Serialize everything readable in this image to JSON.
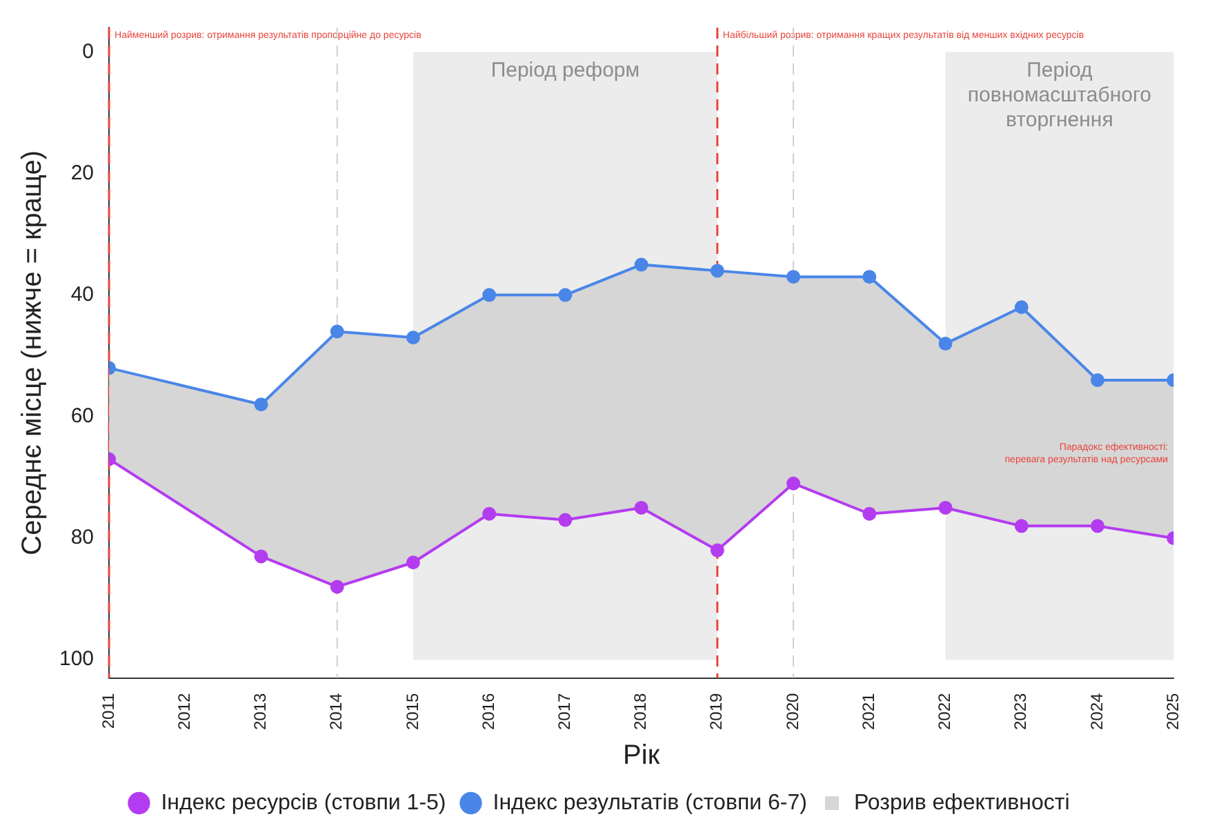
{
  "chart_data": {
    "type": "line",
    "xlabel": "Рік",
    "ylabel": "Середнє місце (нижче = краще)",
    "xlim": [
      2011,
      2025
    ],
    "xticks": [
      2011,
      2012,
      2013,
      2014,
      2015,
      2016,
      2017,
      2018,
      2019,
      2020,
      2021,
      2022,
      2023,
      2024,
      2025
    ],
    "ylim": [
      103,
      -4
    ],
    "yticks": [
      0,
      20,
      40,
      60,
      80,
      100
    ],
    "x": [
      2011,
      2013,
      2014,
      2015,
      2016,
      2017,
      2018,
      2019,
      2020,
      2021,
      2022,
      2023,
      2024,
      2025
    ],
    "series": [
      {
        "name": "Індекс ресурсів (стовпи 1-5)",
        "color": "#b43cf0",
        "values": [
          67,
          83,
          88,
          84,
          76,
          77,
          75,
          82,
          71,
          76,
          75,
          78,
          78,
          80
        ]
      },
      {
        "name": "Індекс результатів (стовпи 6-7)",
        "color": "#4a86e8",
        "values": [
          52,
          58,
          46,
          47,
          40,
          40,
          35,
          36,
          37,
          37,
          48,
          42,
          54,
          54
        ]
      },
      {
        "name": "Розрив ефективності",
        "type": "area",
        "marker": "none",
        "color": "#d6d6d6",
        "values": [
          null,
          null,
          null,
          null,
          null,
          null,
          null,
          null,
          null,
          null,
          null,
          null,
          null,
          null
        ],
        "upper": [
          52,
          58,
          46,
          47,
          40,
          40,
          35,
          36,
          37,
          37,
          48,
          42,
          54,
          54
        ],
        "lower": [
          67,
          83,
          88,
          84,
          76,
          77,
          75,
          82,
          71,
          76,
          75,
          78,
          78,
          80
        ]
      }
    ],
    "bands": [
      {
        "axis": "x",
        "from": 2015,
        "to": 2019,
        "label": "Період реформ",
        "color": "#ececec"
      },
      {
        "axis": "x",
        "from": 2022,
        "to": 2025,
        "label": "Період повномасштабного вторгнення",
        "color": "#ececec"
      }
    ],
    "ref_lines": [
      {
        "axis": "x",
        "value": 2011,
        "label": "Найменший розрив: отримання результатів пропорційне до ресурсів",
        "color": "#e8453c",
        "line_style": "dashed"
      },
      {
        "axis": "x",
        "value": 2019,
        "label": "Найбільший розрив: отримання кращих результатів від менших вхідних ресурсів",
        "color": "#e8453c",
        "line_style": "dashed"
      },
      {
        "axis": "x",
        "value": 2014,
        "color": "#d0d0d0",
        "line_style": "dashed"
      },
      {
        "axis": "x",
        "value": 2020,
        "color": "#d0d0d0",
        "line_style": "dashed"
      }
    ],
    "annotations": [
      {
        "text": "Парадокс ефективності:\nперевага результатів над ресурсами",
        "x": 2025,
        "y": 66
      }
    ],
    "marker": "circle",
    "line_style": "solid",
    "grid": false,
    "legend": "bottom"
  }
}
